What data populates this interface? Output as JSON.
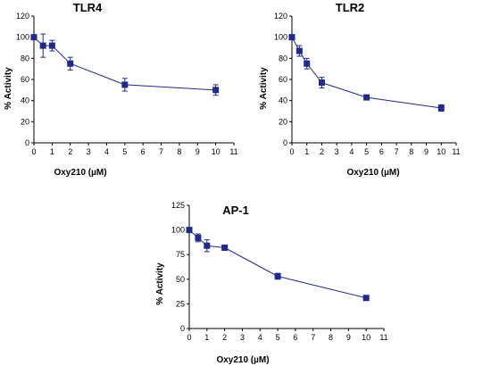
{
  "colors": {
    "series": "#1f2a8a",
    "axis": "#000000"
  },
  "chart_data": [
    {
      "type": "line",
      "title": "TLR4",
      "xlabel": "Oxy210 (µM)",
      "ylabel": "% Activity",
      "xlim": [
        0,
        11
      ],
      "ylim": [
        0,
        120
      ],
      "xticks": [
        0,
        1,
        2,
        3,
        4,
        5,
        6,
        7,
        8,
        9,
        10,
        11
      ],
      "yticks": [
        0,
        20,
        40,
        60,
        80,
        100,
        120
      ],
      "grid": false,
      "series": [
        {
          "x": [
            0,
            0.5,
            1,
            2,
            5,
            10
          ],
          "y": [
            100,
            92,
            92,
            75,
            55,
            50
          ],
          "err": [
            0,
            11,
            5,
            6,
            6,
            5
          ]
        }
      ]
    },
    {
      "type": "line",
      "title": "TLR2",
      "xlabel": "Oxy210 (µM)",
      "ylabel": "% Activity",
      "xlim": [
        0,
        11
      ],
      "ylim": [
        0,
        120
      ],
      "xticks": [
        0,
        1,
        2,
        3,
        4,
        5,
        6,
        7,
        8,
        9,
        10,
        11
      ],
      "yticks": [
        0,
        20,
        40,
        60,
        80,
        100,
        120
      ],
      "grid": false,
      "series": [
        {
          "x": [
            0,
            0.5,
            1,
            2,
            5,
            10
          ],
          "y": [
            100,
            87,
            75,
            57,
            43,
            33
          ],
          "err": [
            0,
            5,
            5,
            5,
            1,
            3
          ]
        }
      ]
    },
    {
      "type": "line",
      "title": "AP-1",
      "xlabel": "Oxy210 (µM)",
      "ylabel": "% Activity",
      "xlim": [
        0,
        11
      ],
      "ylim": [
        0,
        125
      ],
      "xticks": [
        0,
        1,
        2,
        3,
        4,
        5,
        6,
        7,
        8,
        9,
        10,
        11
      ],
      "yticks": [
        0,
        25,
        50,
        75,
        100,
        125
      ],
      "grid": false,
      "series": [
        {
          "x": [
            0,
            0.5,
            1,
            2,
            5,
            10
          ],
          "y": [
            100,
            92,
            84,
            82,
            53,
            31
          ],
          "err": [
            0,
            4,
            6,
            2,
            3,
            1
          ]
        }
      ]
    }
  ]
}
